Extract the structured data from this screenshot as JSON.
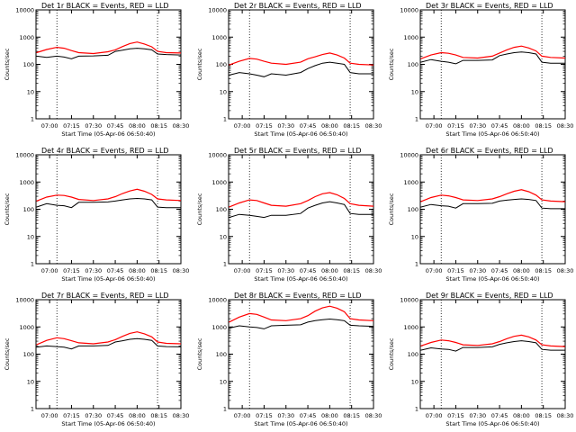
{
  "chart_data": [
    {
      "type": "line",
      "title": "Det 1r BLACK = Events, RED = LLD",
      "xlabel": "Start Time (05-Apr-06 06:50:40)",
      "ylabel": "Counts/sec",
      "yscale": "log",
      "ylim": [
        1,
        10000
      ],
      "xlim": [
        "06:50:40",
        "08:30:00"
      ],
      "xticks": [
        "07:00",
        "07:15",
        "07:30",
        "07:45",
        "08:00",
        "08:15",
        "08:30"
      ],
      "yticks": [
        "1",
        "10",
        "100",
        "1000",
        "10000"
      ],
      "vlines": [
        "07:05",
        "08:14"
      ],
      "grid": false,
      "x": [
        "06:51",
        "06:58",
        "07:05",
        "07:10",
        "07:15",
        "07:20",
        "07:30",
        "07:40",
        "07:45",
        "07:50",
        "07:55",
        "08:00",
        "08:05",
        "08:10",
        "08:14",
        "08:20",
        "08:30"
      ],
      "series": [
        {
          "color": "#000000",
          "values": [
            200,
            180,
            200,
            185,
            160,
            200,
            205,
            215,
            300,
            330,
            370,
            390,
            370,
            340,
            240,
            230,
            220
          ]
        },
        {
          "color": "#ff0000",
          "values": [
            270,
            350,
            420,
            390,
            320,
            270,
            250,
            290,
            340,
            450,
            580,
            660,
            560,
            440,
            300,
            270,
            260
          ]
        }
      ]
    },
    {
      "type": "line",
      "title": "Det 2r BLACK = Events, RED = LLD",
      "xlabel": "Start Time (05-Apr-06 06:50:40)",
      "ylabel": "Counts/sec",
      "yscale": "log",
      "ylim": [
        1,
        10000
      ],
      "xlim": [
        "06:50:40",
        "08:30:00"
      ],
      "xticks": [
        "07:00",
        "07:15",
        "07:30",
        "07:45",
        "08:00",
        "08:15",
        "08:30"
      ],
      "yticks": [
        "1",
        "10",
        "100",
        "1000",
        "10000"
      ],
      "vlines": [
        "07:05",
        "08:14"
      ],
      "grid": false,
      "x": [
        "06:51",
        "06:58",
        "07:05",
        "07:10",
        "07:15",
        "07:20",
        "07:30",
        "07:40",
        "07:45",
        "07:50",
        "07:55",
        "08:00",
        "08:05",
        "08:10",
        "08:14",
        "08:20",
        "08:30"
      ],
      "series": [
        {
          "color": "#000000",
          "values": [
            40,
            50,
            45,
            40,
            35,
            45,
            40,
            50,
            70,
            90,
            110,
            120,
            110,
            100,
            50,
            45,
            45
          ]
        },
        {
          "color": "#ff0000",
          "values": [
            95,
            130,
            165,
            155,
            130,
            110,
            100,
            120,
            160,
            190,
            230,
            260,
            220,
            170,
            110,
            100,
            95
          ]
        }
      ]
    },
    {
      "type": "line",
      "title": "Det 3r BLACK = Events, RED = LLD",
      "xlabel": "Start Time (05-Apr-06 06:50:40)",
      "ylabel": "Counts/sec",
      "yscale": "log",
      "ylim": [
        1,
        10000
      ],
      "xlim": [
        "06:50:40",
        "08:30:00"
      ],
      "xticks": [
        "07:00",
        "07:15",
        "07:30",
        "07:45",
        "08:00",
        "08:15",
        "08:30"
      ],
      "yticks": [
        "1",
        "10",
        "100",
        "1000",
        "10000"
      ],
      "vlines": [
        "07:05",
        "08:14"
      ],
      "grid": false,
      "x": [
        "06:51",
        "06:58",
        "07:05",
        "07:10",
        "07:15",
        "07:20",
        "07:30",
        "07:40",
        "07:45",
        "07:50",
        "07:55",
        "08:00",
        "08:05",
        "08:10",
        "08:14",
        "08:20",
        "08:30"
      ],
      "series": [
        {
          "color": "#000000",
          "values": [
            120,
            150,
            130,
            120,
            105,
            140,
            140,
            145,
            210,
            240,
            270,
            285,
            270,
            240,
            120,
            110,
            110
          ]
        },
        {
          "color": "#ff0000",
          "values": [
            160,
            220,
            270,
            255,
            220,
            180,
            170,
            200,
            260,
            340,
            420,
            470,
            400,
            310,
            200,
            180,
            170
          ]
        }
      ]
    },
    {
      "type": "line",
      "title": "Det 4r BLACK = Events, RED = LLD",
      "xlabel": "Start Time (05-Apr-06 06:50:40)",
      "ylabel": "Counts/sec",
      "yscale": "log",
      "ylim": [
        1,
        10000
      ],
      "xlim": [
        "06:50:40",
        "08:30:00"
      ],
      "xticks": [
        "07:00",
        "07:15",
        "07:30",
        "07:45",
        "08:00",
        "08:15",
        "08:30"
      ],
      "yticks": [
        "1",
        "10",
        "100",
        "1000",
        "10000"
      ],
      "vlines": [
        "07:05",
        "08:14"
      ],
      "grid": false,
      "x": [
        "06:51",
        "06:58",
        "07:05",
        "07:10",
        "07:15",
        "07:20",
        "07:30",
        "07:40",
        "07:45",
        "07:50",
        "07:55",
        "08:00",
        "08:05",
        "08:10",
        "08:14",
        "08:20",
        "08:30"
      ],
      "series": [
        {
          "color": "#000000",
          "values": [
            120,
            160,
            140,
            135,
            115,
            180,
            180,
            185,
            200,
            220,
            240,
            250,
            240,
            220,
            120,
            115,
            115
          ]
        },
        {
          "color": "#ff0000",
          "values": [
            200,
            280,
            330,
            320,
            280,
            230,
            210,
            240,
            290,
            380,
            470,
            540,
            460,
            350,
            240,
            220,
            210
          ]
        }
      ]
    },
    {
      "type": "line",
      "title": "Det 5r BLACK = Events, RED = LLD",
      "xlabel": "Start Time (05-Apr-06 06:50:40)",
      "ylabel": "Counts/sec",
      "yscale": "log",
      "ylim": [
        1,
        10000
      ],
      "xlim": [
        "06:50:40",
        "08:30:00"
      ],
      "xticks": [
        "07:00",
        "07:15",
        "07:30",
        "07:45",
        "08:00",
        "08:15",
        "08:30"
      ],
      "yticks": [
        "1",
        "10",
        "100",
        "1000",
        "10000"
      ],
      "vlines": [
        "07:05",
        "08:14"
      ],
      "grid": false,
      "x": [
        "06:51",
        "06:58",
        "07:05",
        "07:10",
        "07:15",
        "07:20",
        "07:30",
        "07:40",
        "07:45",
        "07:50",
        "07:55",
        "08:00",
        "08:05",
        "08:10",
        "08:14",
        "08:20",
        "08:30"
      ],
      "series": [
        {
          "color": "#000000",
          "values": [
            50,
            65,
            60,
            55,
            50,
            60,
            60,
            70,
            110,
            140,
            170,
            190,
            170,
            150,
            70,
            65,
            65
          ]
        },
        {
          "color": "#ff0000",
          "values": [
            120,
            170,
            220,
            210,
            170,
            140,
            130,
            160,
            210,
            290,
            370,
            410,
            340,
            250,
            160,
            140,
            130
          ]
        }
      ]
    },
    {
      "type": "line",
      "title": "Det 6r BLACK = Events, RED = LLD",
      "xlabel": "Start Time (05-Apr-06 06:50:40)",
      "ylabel": "Counts/sec",
      "yscale": "log",
      "ylim": [
        1,
        10000
      ],
      "xlim": [
        "06:50:40",
        "08:30:00"
      ],
      "xticks": [
        "07:00",
        "07:15",
        "07:30",
        "07:45",
        "08:00",
        "08:15",
        "08:30"
      ],
      "yticks": [
        "1",
        "10",
        "100",
        "1000",
        "10000"
      ],
      "vlines": [
        "07:05",
        "08:14"
      ],
      "grid": false,
      "x": [
        "06:51",
        "06:58",
        "07:05",
        "07:10",
        "07:15",
        "07:20",
        "07:30",
        "07:40",
        "07:45",
        "07:50",
        "07:55",
        "08:00",
        "08:05",
        "08:10",
        "08:14",
        "08:20",
        "08:30"
      ],
      "series": [
        {
          "color": "#000000",
          "values": [
            120,
            150,
            135,
            130,
            110,
            160,
            160,
            165,
            200,
            215,
            230,
            240,
            230,
            210,
            110,
            105,
            105
          ]
        },
        {
          "color": "#ff0000",
          "values": [
            190,
            270,
            330,
            310,
            270,
            220,
            210,
            240,
            290,
            370,
            460,
            520,
            440,
            330,
            220,
            200,
            190
          ]
        }
      ]
    },
    {
      "type": "line",
      "title": "Det 7r BLACK = Events, RED = LLD",
      "xlabel": "Start Time (05-Apr-06 06:50:40)",
      "ylabel": "Counts/sec",
      "yscale": "log",
      "ylim": [
        1,
        10000
      ],
      "xlim": [
        "06:50:40",
        "08:30:00"
      ],
      "xticks": [
        "07:00",
        "07:15",
        "07:30",
        "07:45",
        "08:00",
        "08:15",
        "08:30"
      ],
      "yticks": [
        "1",
        "10",
        "100",
        "1000",
        "10000"
      ],
      "vlines": [
        "07:05",
        "08:14"
      ],
      "grid": false,
      "x": [
        "06:51",
        "06:58",
        "07:05",
        "07:10",
        "07:15",
        "07:20",
        "07:30",
        "07:40",
        "07:45",
        "07:50",
        "07:55",
        "08:00",
        "08:05",
        "08:10",
        "08:14",
        "08:20",
        "08:30"
      ],
      "series": [
        {
          "color": "#000000",
          "values": [
            180,
            200,
            190,
            180,
            155,
            200,
            200,
            210,
            280,
            310,
            350,
            370,
            350,
            320,
            200,
            190,
            185
          ]
        },
        {
          "color": "#ff0000",
          "values": [
            220,
            320,
            400,
            370,
            310,
            260,
            240,
            280,
            340,
            450,
            580,
            660,
            560,
            430,
            280,
            250,
            240
          ]
        }
      ]
    },
    {
      "type": "line",
      "title": "Det 8r BLACK = Events, RED = LLD",
      "xlabel": "Start Time (05-Apr-06 06:50:40)",
      "ylabel": "Counts/sec",
      "yscale": "log",
      "ylim": [
        1,
        10000
      ],
      "xlim": [
        "06:50:40",
        "08:30:00"
      ],
      "xticks": [
        "07:00",
        "07:15",
        "07:30",
        "07:45",
        "08:00",
        "08:15",
        "08:30"
      ],
      "yticks": [
        "1",
        "10",
        "100",
        "1000",
        "10000"
      ],
      "vlines": [
        "07:05",
        "08:14"
      ],
      "grid": false,
      "x": [
        "06:51",
        "06:58",
        "07:05",
        "07:10",
        "07:15",
        "07:20",
        "07:30",
        "07:40",
        "07:45",
        "07:50",
        "07:55",
        "08:00",
        "08:05",
        "08:10",
        "08:14",
        "08:20",
        "08:30"
      ],
      "series": [
        {
          "color": "#000000",
          "values": [
            900,
            1100,
            1000,
            950,
            850,
            1100,
            1150,
            1200,
            1500,
            1700,
            1850,
            1950,
            1850,
            1700,
            1150,
            1100,
            1050
          ]
        },
        {
          "color": "#ff0000",
          "values": [
            1500,
            2300,
            3100,
            2900,
            2300,
            1800,
            1700,
            2000,
            2600,
            3800,
            5000,
            5800,
            4900,
            3600,
            2000,
            1800,
            1700
          ]
        }
      ]
    },
    {
      "type": "line",
      "title": "Det 9r BLACK = Events, RED = LLD",
      "xlabel": "Start Time (05-Apr-06 06:50:40)",
      "ylabel": "Counts/sec",
      "yscale": "log",
      "ylim": [
        1,
        10000
      ],
      "xlim": [
        "06:50:40",
        "08:30:00"
      ],
      "xticks": [
        "07:00",
        "07:15",
        "07:30",
        "07:45",
        "08:00",
        "08:15",
        "08:30"
      ],
      "yticks": [
        "1",
        "10",
        "100",
        "1000",
        "10000"
      ],
      "vlines": [
        "07:05",
        "08:14"
      ],
      "grid": false,
      "x": [
        "06:51",
        "06:58",
        "07:05",
        "07:10",
        "07:15",
        "07:20",
        "07:30",
        "07:40",
        "07:45",
        "07:50",
        "07:55",
        "08:00",
        "08:05",
        "08:10",
        "08:14",
        "08:20",
        "08:30"
      ],
      "series": [
        {
          "color": "#000000",
          "values": [
            140,
            170,
            155,
            150,
            130,
            175,
            175,
            185,
            230,
            260,
            290,
            310,
            290,
            260,
            150,
            140,
            140
          ]
        },
        {
          "color": "#ff0000",
          "values": [
            200,
            270,
            330,
            310,
            270,
            220,
            210,
            240,
            290,
            370,
            450,
            500,
            430,
            330,
            220,
            200,
            190
          ]
        }
      ]
    }
  ]
}
